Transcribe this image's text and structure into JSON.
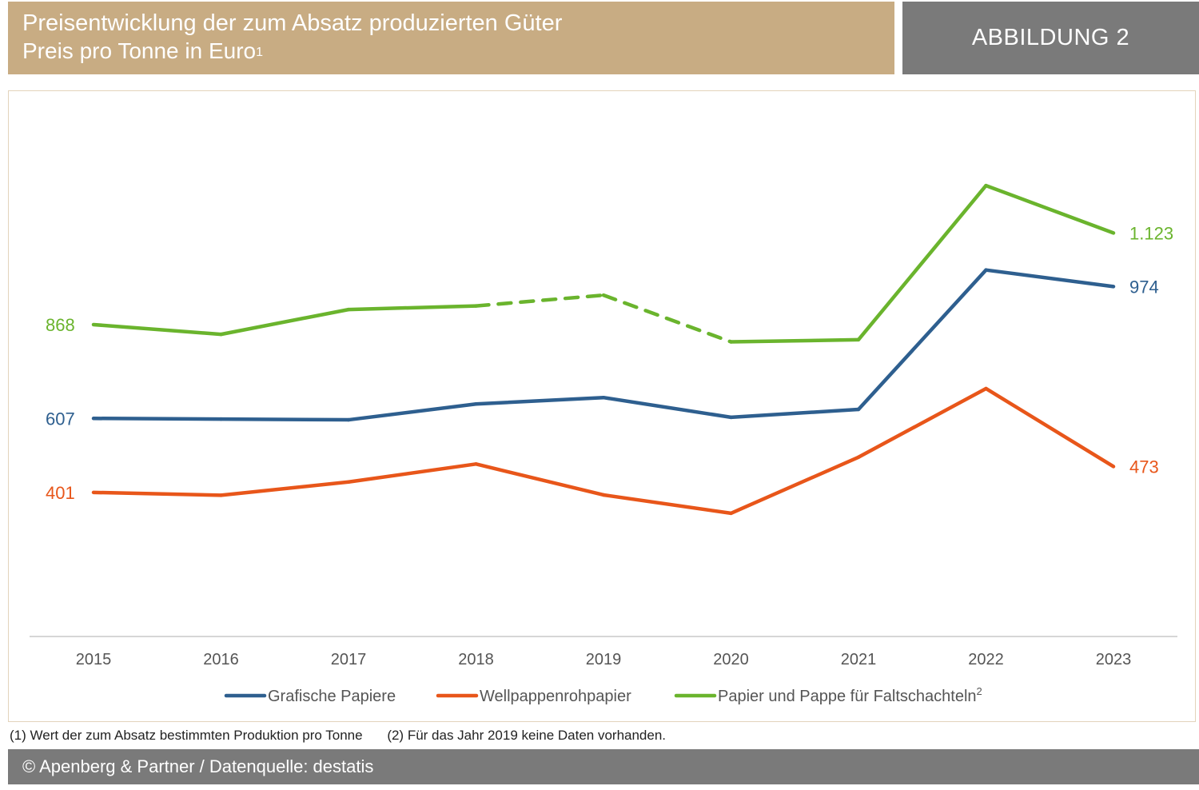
{
  "header": {
    "title": "Preisentwicklung der zum Absatz produzierten Güter",
    "subtitle": "Preis pro Tonne in Euro",
    "subtitle_sup": "1",
    "figure_label": "ABBILDUNG 2"
  },
  "footnotes": {
    "note1": "(1) Wert der zum Absatz bestimmten Produktion pro Tonne",
    "note2": "(2) Für das Jahr 2019 keine Daten vorhanden."
  },
  "footer": {
    "text": "© Apenberg & Partner / Datenquelle: destatis"
  },
  "chart_data": {
    "type": "line",
    "title": "Preisentwicklung der zum Absatz produzierten Güter",
    "subtitle": "Preis pro Tonne in Euro",
    "x": [
      "2015",
      "2016",
      "2017",
      "2018",
      "2019",
      "2020",
      "2021",
      "2022",
      "2023"
    ],
    "ylim": [
      0,
      1500
    ],
    "grid": false,
    "legend_position": "bottom",
    "series": [
      {
        "name": "Grafische Papiere",
        "color": "#2e5f8f",
        "values": [
          607,
          605,
          603,
          647,
          665,
          610,
          632,
          1020,
          974
        ],
        "start_label": "607",
        "end_label": "974"
      },
      {
        "name": "Wellpappenrohpapier",
        "color": "#e8561a",
        "values": [
          401,
          393,
          430,
          480,
          394,
          343,
          499,
          690,
          473
        ],
        "start_label": "401",
        "end_label": "473"
      },
      {
        "name": "Papier und Pappe für Faltschachteln",
        "name_sup": "2",
        "color": "#6ab42d",
        "values": [
          868,
          841,
          910,
          920,
          950,
          820,
          826,
          1255,
          1123
        ],
        "dashed_segments": [
          [
            3,
            4
          ],
          [
            4,
            5
          ]
        ],
        "start_label": "868",
        "end_label": "1.123"
      }
    ]
  }
}
